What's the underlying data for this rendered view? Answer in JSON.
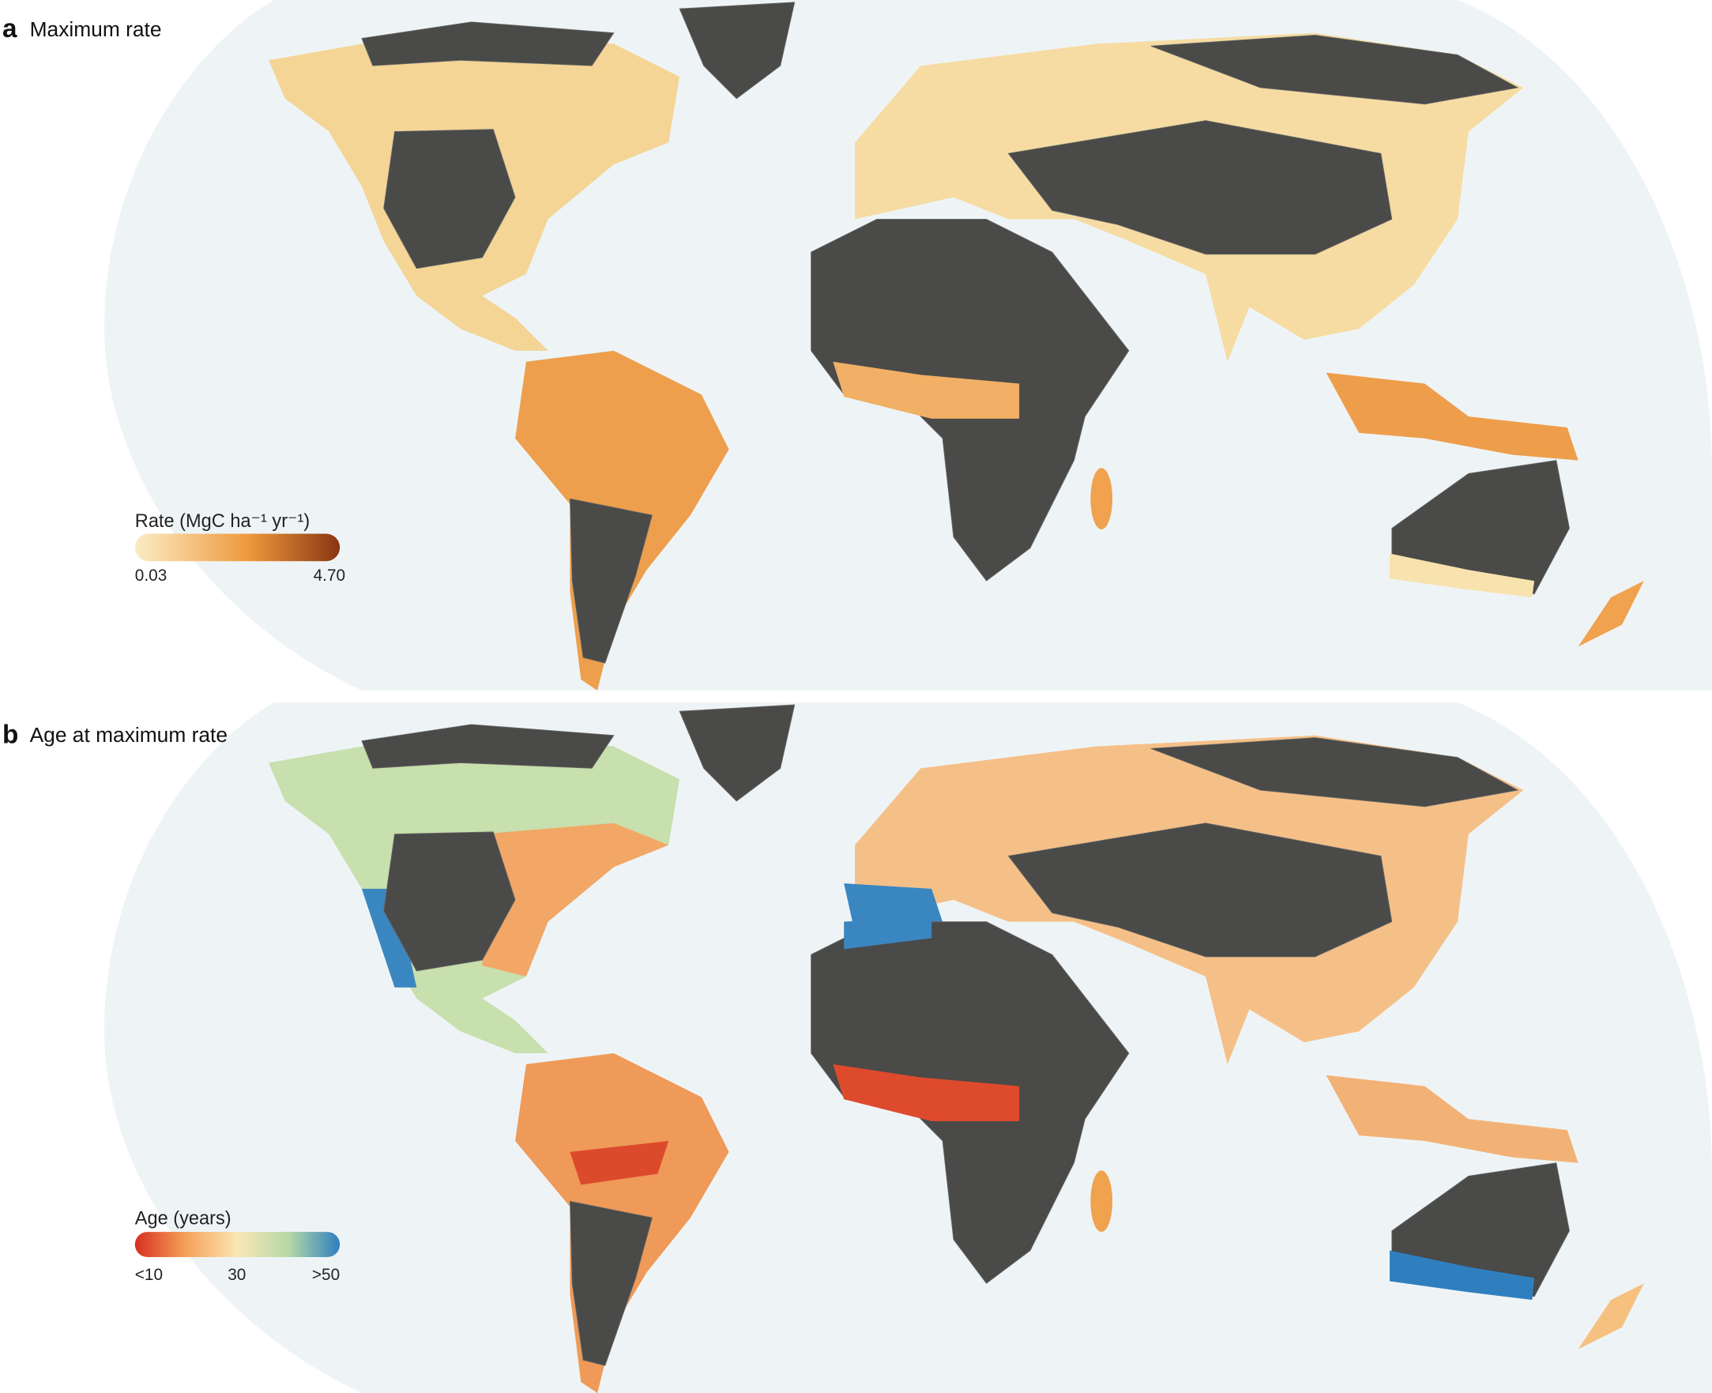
{
  "panels": [
    {
      "label": "a",
      "title": "Maximum rate",
      "legend": {
        "title": "Rate (MgC ha⁻¹ yr⁻¹)",
        "labels": [
          "0.03",
          "4.70"
        ]
      }
    },
    {
      "label": "b",
      "title": "Age at maximum rate",
      "legend": {
        "title": "Age (years)",
        "labels": [
          "<10",
          "30",
          ">50"
        ]
      }
    }
  ]
}
